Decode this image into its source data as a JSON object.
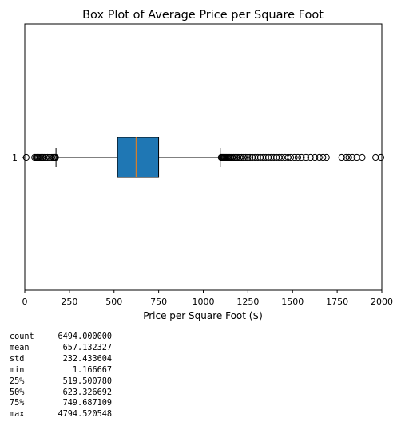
{
  "chart_data": {
    "type": "boxplot",
    "title": "Box Plot of Average Price per Square Foot",
    "xlabel": "Price per Square Foot ($)",
    "ylabel": "",
    "orientation": "horizontal",
    "xlim": [
      0,
      2000
    ],
    "x_ticks": [
      0,
      250,
      500,
      750,
      1000,
      1250,
      1500,
      1750,
      2000
    ],
    "y_tick_labels": [
      "1"
    ],
    "grid": false,
    "box": {
      "category": "1",
      "q1": 519.50078,
      "median": 623.326692,
      "q3": 749.687109,
      "whisker_low": 175,
      "whisker_high": 1095,
      "outliers": [
        8,
        55,
        62,
        68,
        72,
        78,
        85,
        92,
        100,
        108,
        118,
        128,
        140,
        152,
        160,
        166,
        170,
        173,
        1100,
        1104,
        1108,
        1112,
        1116,
        1120,
        1125,
        1130,
        1136,
        1142,
        1148,
        1155,
        1162,
        1170,
        1178,
        1186,
        1195,
        1205,
        1215,
        1226,
        1238,
        1250,
        1262,
        1275,
        1290,
        1305,
        1320,
        1335,
        1350,
        1365,
        1380,
        1395,
        1410,
        1425,
        1440,
        1458,
        1475,
        1490,
        1510,
        1530,
        1550,
        1575,
        1600,
        1625,
        1650,
        1670,
        1690,
        1775,
        1800,
        1815,
        1835,
        1860,
        1890,
        1965,
        1995
      ]
    },
    "colors": {
      "box_fill": "#1f77b4",
      "median": "#ff7f0e",
      "line": "#000000"
    }
  },
  "stats": [
    {
      "label": "count",
      "value": "6494.000000"
    },
    {
      "label": "mean",
      "value": "657.132327"
    },
    {
      "label": "std",
      "value": "232.433604"
    },
    {
      "label": "min",
      "value": "1.166667"
    },
    {
      "label": "25%",
      "value": "519.500780"
    },
    {
      "label": "50%",
      "value": "623.326692"
    },
    {
      "label": "75%",
      "value": "749.687109"
    },
    {
      "label": "max",
      "value": "4794.520548"
    }
  ]
}
